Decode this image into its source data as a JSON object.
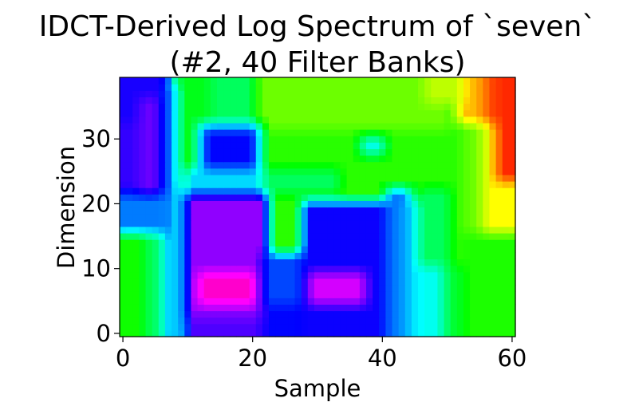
{
  "chart_data": {
    "type": "heatmap",
    "title_lines": [
      "IDCT-Derived Log Spectrum of `seven`",
      "(#2, 40 Filter Banks)"
    ],
    "xlabel": "Sample",
    "ylabel": "Dimension",
    "n_cols": 61,
    "n_rows": 40,
    "xlim": [
      -0.5,
      60.5
    ],
    "ylim": [
      -0.5,
      39.5
    ],
    "x_ticks": [
      0,
      20,
      40,
      60
    ],
    "x_tick_labels": [
      "0",
      "20",
      "40",
      "60"
    ],
    "y_ticks": [
      0,
      10,
      20,
      30
    ],
    "y_tick_labels": [
      "0",
      "10",
      "20",
      "30"
    ],
    "colormap": "hsv",
    "colormap_hue_range_deg": [
      0,
      315
    ],
    "value_range": [
      0,
      1
    ],
    "regions": [
      {
        "shape": "rect",
        "x": [
          0,
          7
        ],
        "y": [
          21,
          39
        ],
        "value": 0.78
      },
      {
        "shape": "rect",
        "x": [
          3,
          5
        ],
        "y": [
          17,
          36
        ],
        "value": 0.84
      },
      {
        "shape": "rect",
        "x": [
          0,
          2
        ],
        "y": [
          23,
          32
        ],
        "value": 0.8
      },
      {
        "shape": "rect",
        "x": [
          0,
          8
        ],
        "y": [
          16,
          21
        ],
        "value": 0.67
      },
      {
        "shape": "rect",
        "x": [
          0,
          4
        ],
        "y": [
          0,
          15
        ],
        "value": 0.37
      },
      {
        "shape": "rect",
        "x": [
          4,
          7
        ],
        "y": [
          0,
          15
        ],
        "value": 0.46
      },
      {
        "shape": "rect",
        "x": [
          7,
          8
        ],
        "y": [
          0,
          38
        ],
        "value": 0.66
      },
      {
        "shape": "rect",
        "x": [
          9,
          13
        ],
        "y": [
          0,
          22
        ],
        "value": 0.5
      },
      {
        "shape": "rect",
        "x": [
          9,
          14
        ],
        "y": [
          23,
          39
        ],
        "value": 0.4
      },
      {
        "shape": "rect",
        "x": [
          14,
          21
        ],
        "y": [
          28,
          39
        ],
        "value": 0.45
      },
      {
        "shape": "rect",
        "x": [
          21,
          50
        ],
        "y": [
          32,
          39
        ],
        "value": 0.3
      },
      {
        "shape": "rect",
        "x": [
          21,
          50
        ],
        "y": [
          20,
          31
        ],
        "value": 0.35
      },
      {
        "shape": "rect",
        "x": [
          12,
          21
        ],
        "y": [
          23,
          32
        ],
        "value": 0.64
      },
      {
        "shape": "rect",
        "x": [
          13,
          20
        ],
        "y": [
          26,
          31
        ],
        "value": 0.76
      },
      {
        "shape": "rect",
        "x": [
          10,
          22
        ],
        "y": [
          19,
          25
        ],
        "value": 0.6
      },
      {
        "shape": "rect",
        "x": [
          10,
          22
        ],
        "y": [
          0,
          21
        ],
        "value": 0.87
      },
      {
        "shape": "rect",
        "x": [
          10,
          21
        ],
        "y": [
          0,
          2
        ],
        "value": 0.82
      },
      {
        "shape": "rect",
        "x": [
          12,
          20
        ],
        "y": [
          5,
          9
        ],
        "value": 0.99
      },
      {
        "shape": "rect",
        "x": [
          22,
          28
        ],
        "y": [
          0,
          12
        ],
        "value": 0.71
      },
      {
        "shape": "rect",
        "x": [
          22,
          28
        ],
        "y": [
          0,
          4
        ],
        "value": 0.76
      },
      {
        "shape": "rect",
        "x": [
          28,
          41
        ],
        "y": [
          0,
          20
        ],
        "value": 0.77
      },
      {
        "shape": "rect",
        "x": [
          29,
          37
        ],
        "y": [
          5,
          9
        ],
        "value": 0.92
      },
      {
        "shape": "rect",
        "x": [
          41,
          44
        ],
        "y": [
          0,
          22
        ],
        "value": 0.67
      },
      {
        "shape": "rect",
        "x": [
          44,
          46
        ],
        "y": [
          0,
          20
        ],
        "value": 0.6
      },
      {
        "shape": "rect",
        "x": [
          46,
          50
        ],
        "y": [
          0,
          10
        ],
        "value": 0.56
      },
      {
        "shape": "rect",
        "x": [
          46,
          50
        ],
        "y": [
          11,
          22
        ],
        "value": 0.45
      },
      {
        "shape": "rect",
        "x": [
          50,
          53
        ],
        "y": [
          0,
          10
        ],
        "value": 0.42
      },
      {
        "shape": "rect",
        "x": [
          53,
          61
        ],
        "y": [
          0,
          15
        ],
        "value": 0.36
      },
      {
        "shape": "rect",
        "x": [
          53,
          56
        ],
        "y": [
          16,
          39
        ],
        "value": 0.3
      },
      {
        "shape": "rect",
        "x": [
          56,
          61
        ],
        "y": [
          16,
          32
        ],
        "value": 0.19
      },
      {
        "shape": "rect",
        "x": [
          56,
          61
        ],
        "y": [
          33,
          39
        ],
        "value": 0.06
      },
      {
        "shape": "rect",
        "x": [
          52,
          55
        ],
        "y": [
          33,
          39
        ],
        "value": 0.14
      },
      {
        "shape": "rect",
        "x": [
          47,
          52
        ],
        "y": [
          36,
          39
        ],
        "value": 0.24
      },
      {
        "shape": "rect",
        "x": [
          58,
          60
        ],
        "y": [
          24,
          39
        ],
        "value": 0.03
      },
      {
        "shape": "rect",
        "x": [
          37,
          40
        ],
        "y": [
          28,
          30
        ],
        "value": 0.55
      },
      {
        "shape": "rect",
        "x": [
          22,
          33
        ],
        "y": [
          22,
          25
        ],
        "value": 0.45
      }
    ],
    "grid": false,
    "legend": "none"
  }
}
